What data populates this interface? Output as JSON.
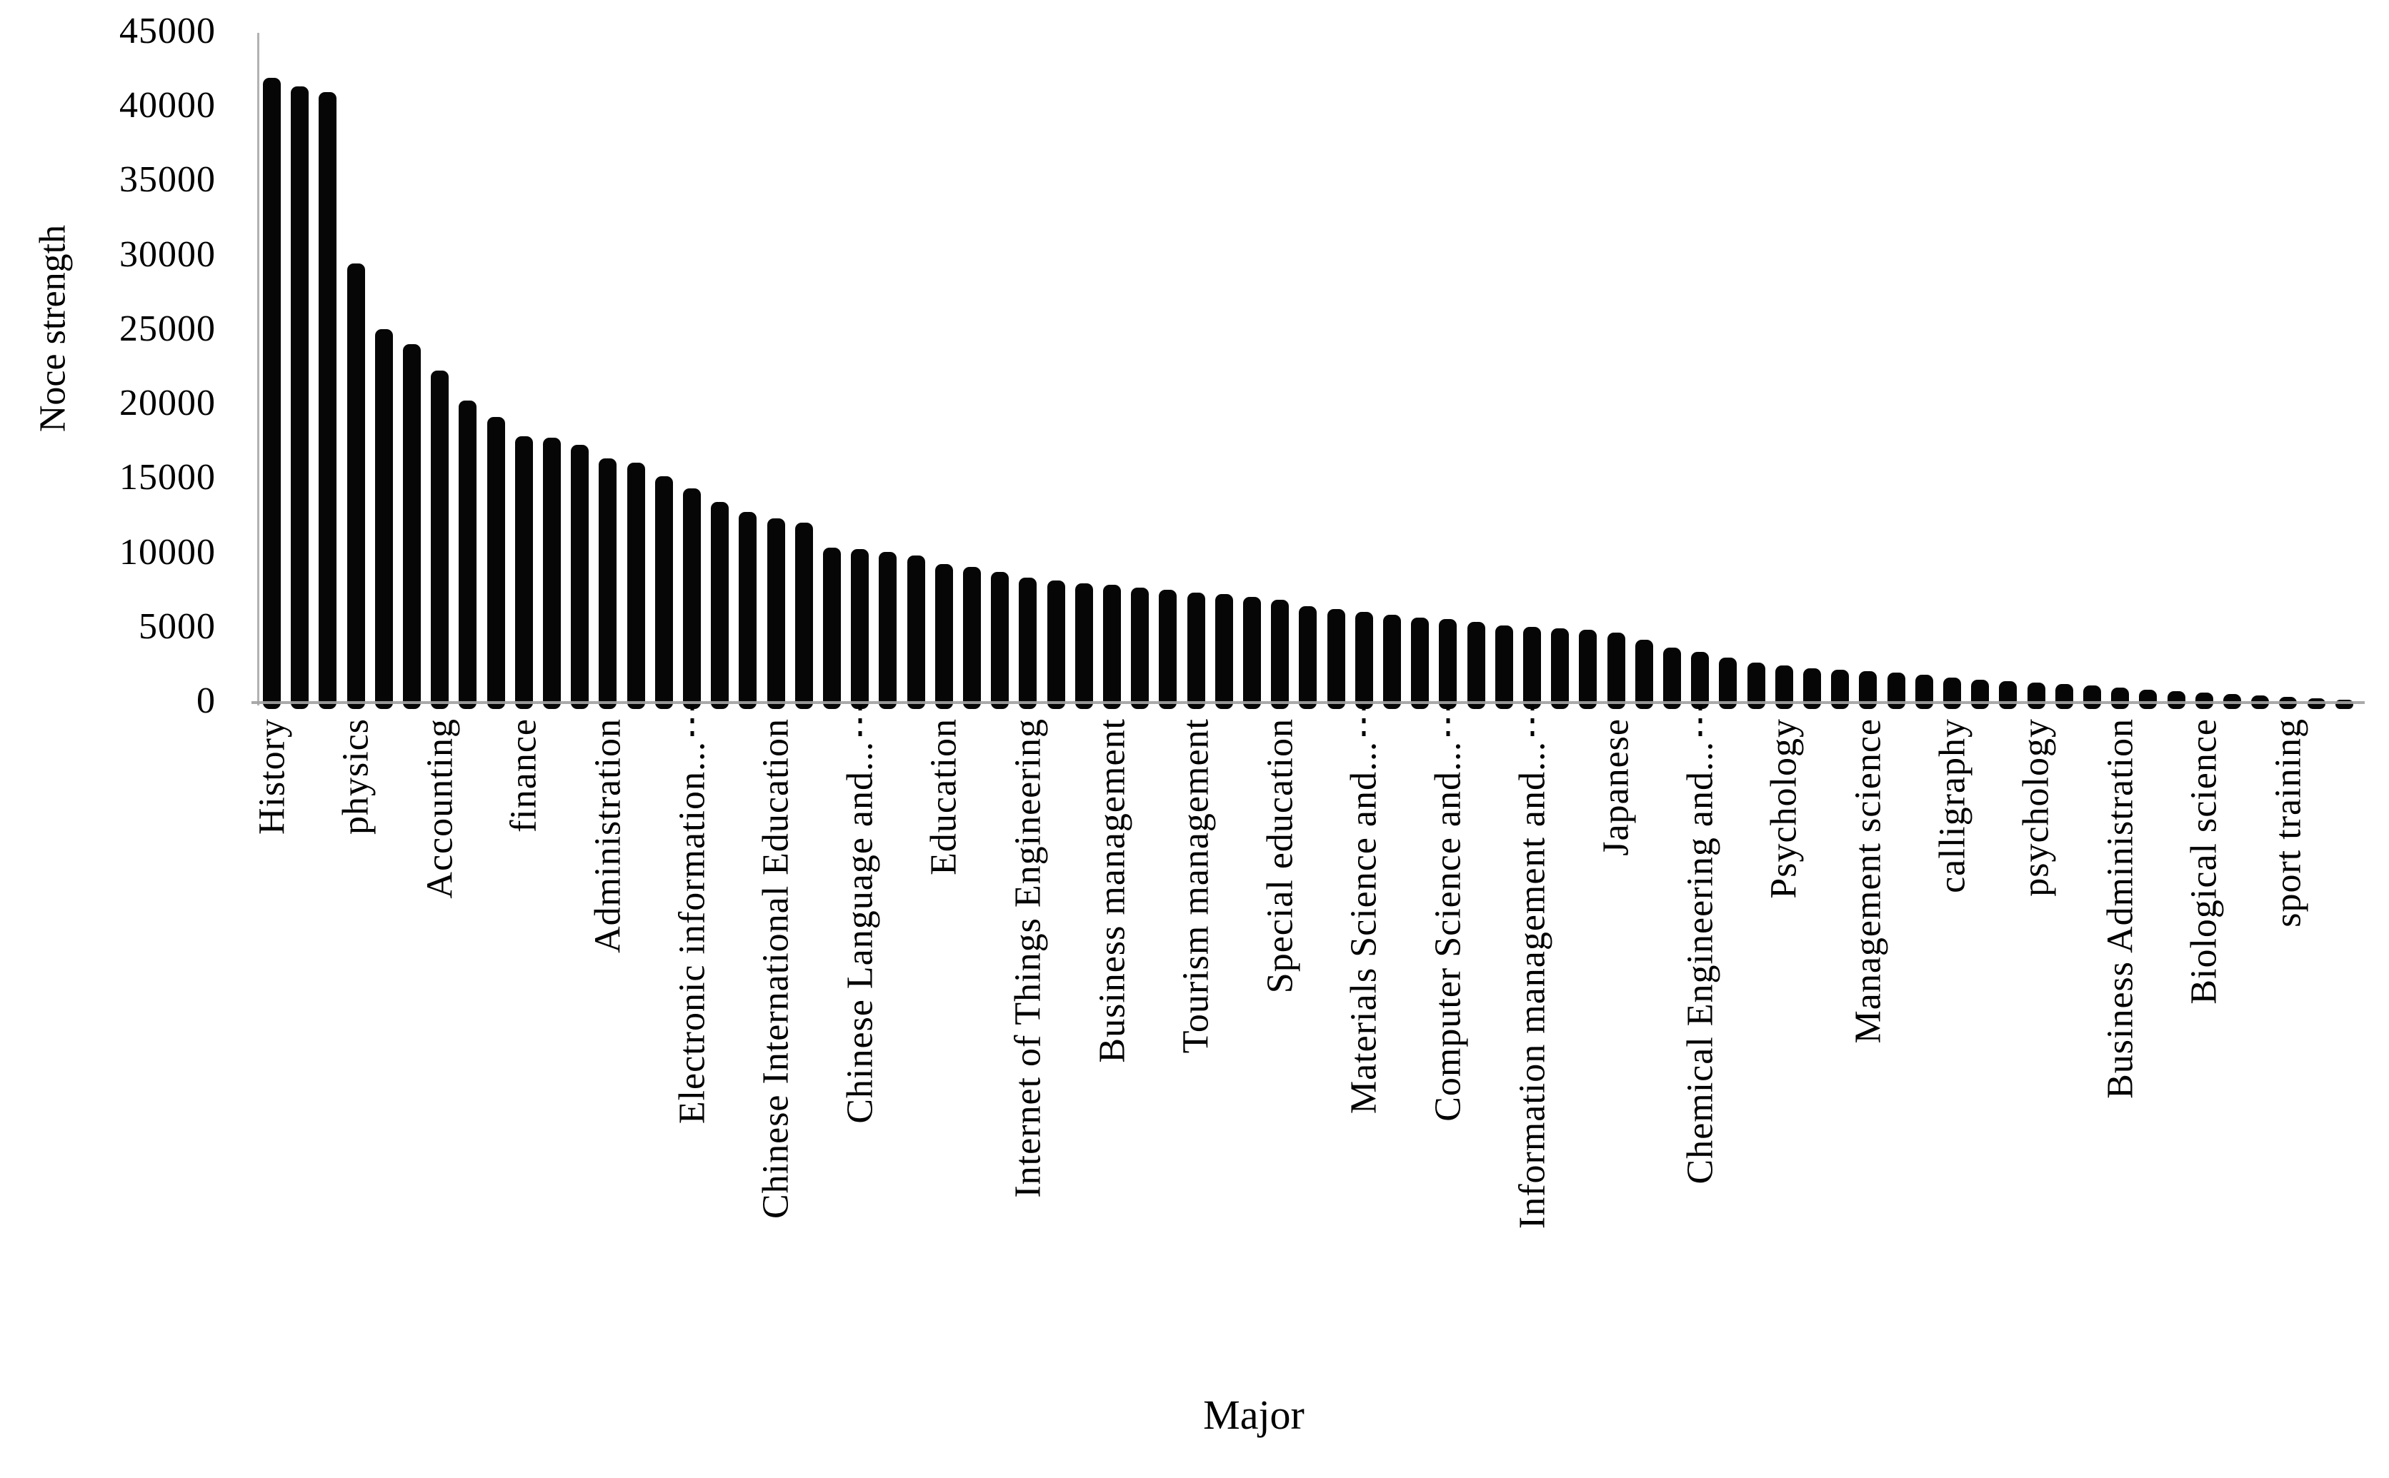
{
  "chart_data": {
    "type": "bar",
    "title": "",
    "xlabel": "Major",
    "ylabel": "Noce strength",
    "ylim": [
      0,
      45000
    ],
    "ytick_interval": 5000,
    "ytick_values": [
      0,
      5000,
      10000,
      15000,
      20000,
      25000,
      30000,
      35000,
      40000,
      45000
    ],
    "grid": false,
    "legend": false,
    "bar_color": "#060606",
    "axis_color": "#a3a3a3",
    "n_bars": 75,
    "x_label_every_nth_bar": 3,
    "values": [
      42000,
      41400,
      41000,
      29500,
      25100,
      24100,
      22300,
      20300,
      19200,
      17900,
      17800,
      17300,
      16400,
      16100,
      15200,
      14400,
      13500,
      12800,
      12400,
      12100,
      10400,
      10300,
      10100,
      9900,
      9300,
      9100,
      8800,
      8400,
      8200,
      8000,
      7900,
      7700,
      7600,
      7400,
      7300,
      7100,
      6900,
      6500,
      6300,
      6100,
      5900,
      5700,
      5600,
      5400,
      5200,
      5100,
      5000,
      4900,
      4700,
      4200,
      3700,
      3400,
      3000,
      2700,
      2500,
      2300,
      2200,
      2100,
      2000,
      1850,
      1700,
      1550,
      1450,
      1350,
      1250,
      1150,
      1000,
      880,
      780,
      680,
      580,
      480,
      380,
      280,
      200
    ],
    "x_tick_labels": [
      {
        "label": "History",
        "bar_index": 0,
        "truncated": false
      },
      {
        "label": "physics",
        "bar_index": 3,
        "truncated": false
      },
      {
        "label": "Accounting",
        "bar_index": 6,
        "truncated": false
      },
      {
        "label": "finance",
        "bar_index": 9,
        "truncated": false
      },
      {
        "label": "Administration",
        "bar_index": 12,
        "truncated": false
      },
      {
        "label": "Electronic information...",
        "bar_index": 15,
        "truncated": true
      },
      {
        "label": "Chinese International Education",
        "bar_index": 18,
        "truncated": false
      },
      {
        "label": "Chinese Language and...",
        "bar_index": 21,
        "truncated": true
      },
      {
        "label": "Education",
        "bar_index": 24,
        "truncated": false
      },
      {
        "label": "Internet of Things Engineering",
        "bar_index": 27,
        "truncated": false
      },
      {
        "label": "Business management",
        "bar_index": 30,
        "truncated": false
      },
      {
        "label": "Tourism management",
        "bar_index": 33,
        "truncated": false
      },
      {
        "label": "Special education",
        "bar_index": 36,
        "truncated": false
      },
      {
        "label": "Materials Science and...",
        "bar_index": 39,
        "truncated": true
      },
      {
        "label": "Computer Science and...",
        "bar_index": 42,
        "truncated": true
      },
      {
        "label": "Information management and...",
        "bar_index": 45,
        "truncated": true
      },
      {
        "label": "Japanese",
        "bar_index": 48,
        "truncated": false
      },
      {
        "label": "Chemical Engineering and...",
        "bar_index": 51,
        "truncated": true
      },
      {
        "label": "Psychology",
        "bar_index": 54,
        "truncated": false
      },
      {
        "label": "Management science",
        "bar_index": 57,
        "truncated": false
      },
      {
        "label": "calligraphy",
        "bar_index": 60,
        "truncated": false
      },
      {
        "label": "psychology",
        "bar_index": 63,
        "truncated": false
      },
      {
        "label": "Business Administration",
        "bar_index": 66,
        "truncated": false
      },
      {
        "label": "Biological science",
        "bar_index": 69,
        "truncated": false
      },
      {
        "label": "sport training",
        "bar_index": 72,
        "truncated": false
      }
    ]
  }
}
